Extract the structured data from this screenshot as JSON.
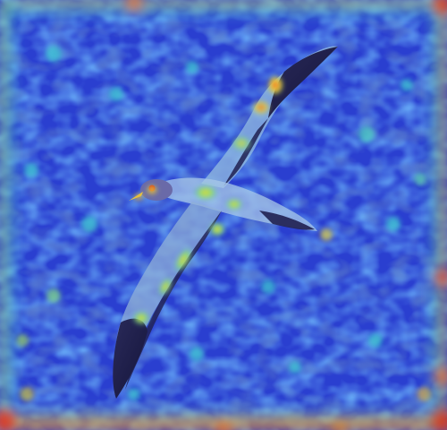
{
  "image": {
    "subject": "seabird",
    "overlay": "attention-heatmap",
    "colors": {
      "background_deep": "#1b27b8",
      "background_mid": "#2f5fe0",
      "cyan_hot": "#38c8d8",
      "green_hot": "#9ee05a",
      "yellow_hot": "#f0e040",
      "orange_hot": "#f08a2a",
      "red_hot": "#d23a22",
      "bird_dark": "#1a1a3a",
      "bird_light": "#a8c8e8"
    }
  }
}
